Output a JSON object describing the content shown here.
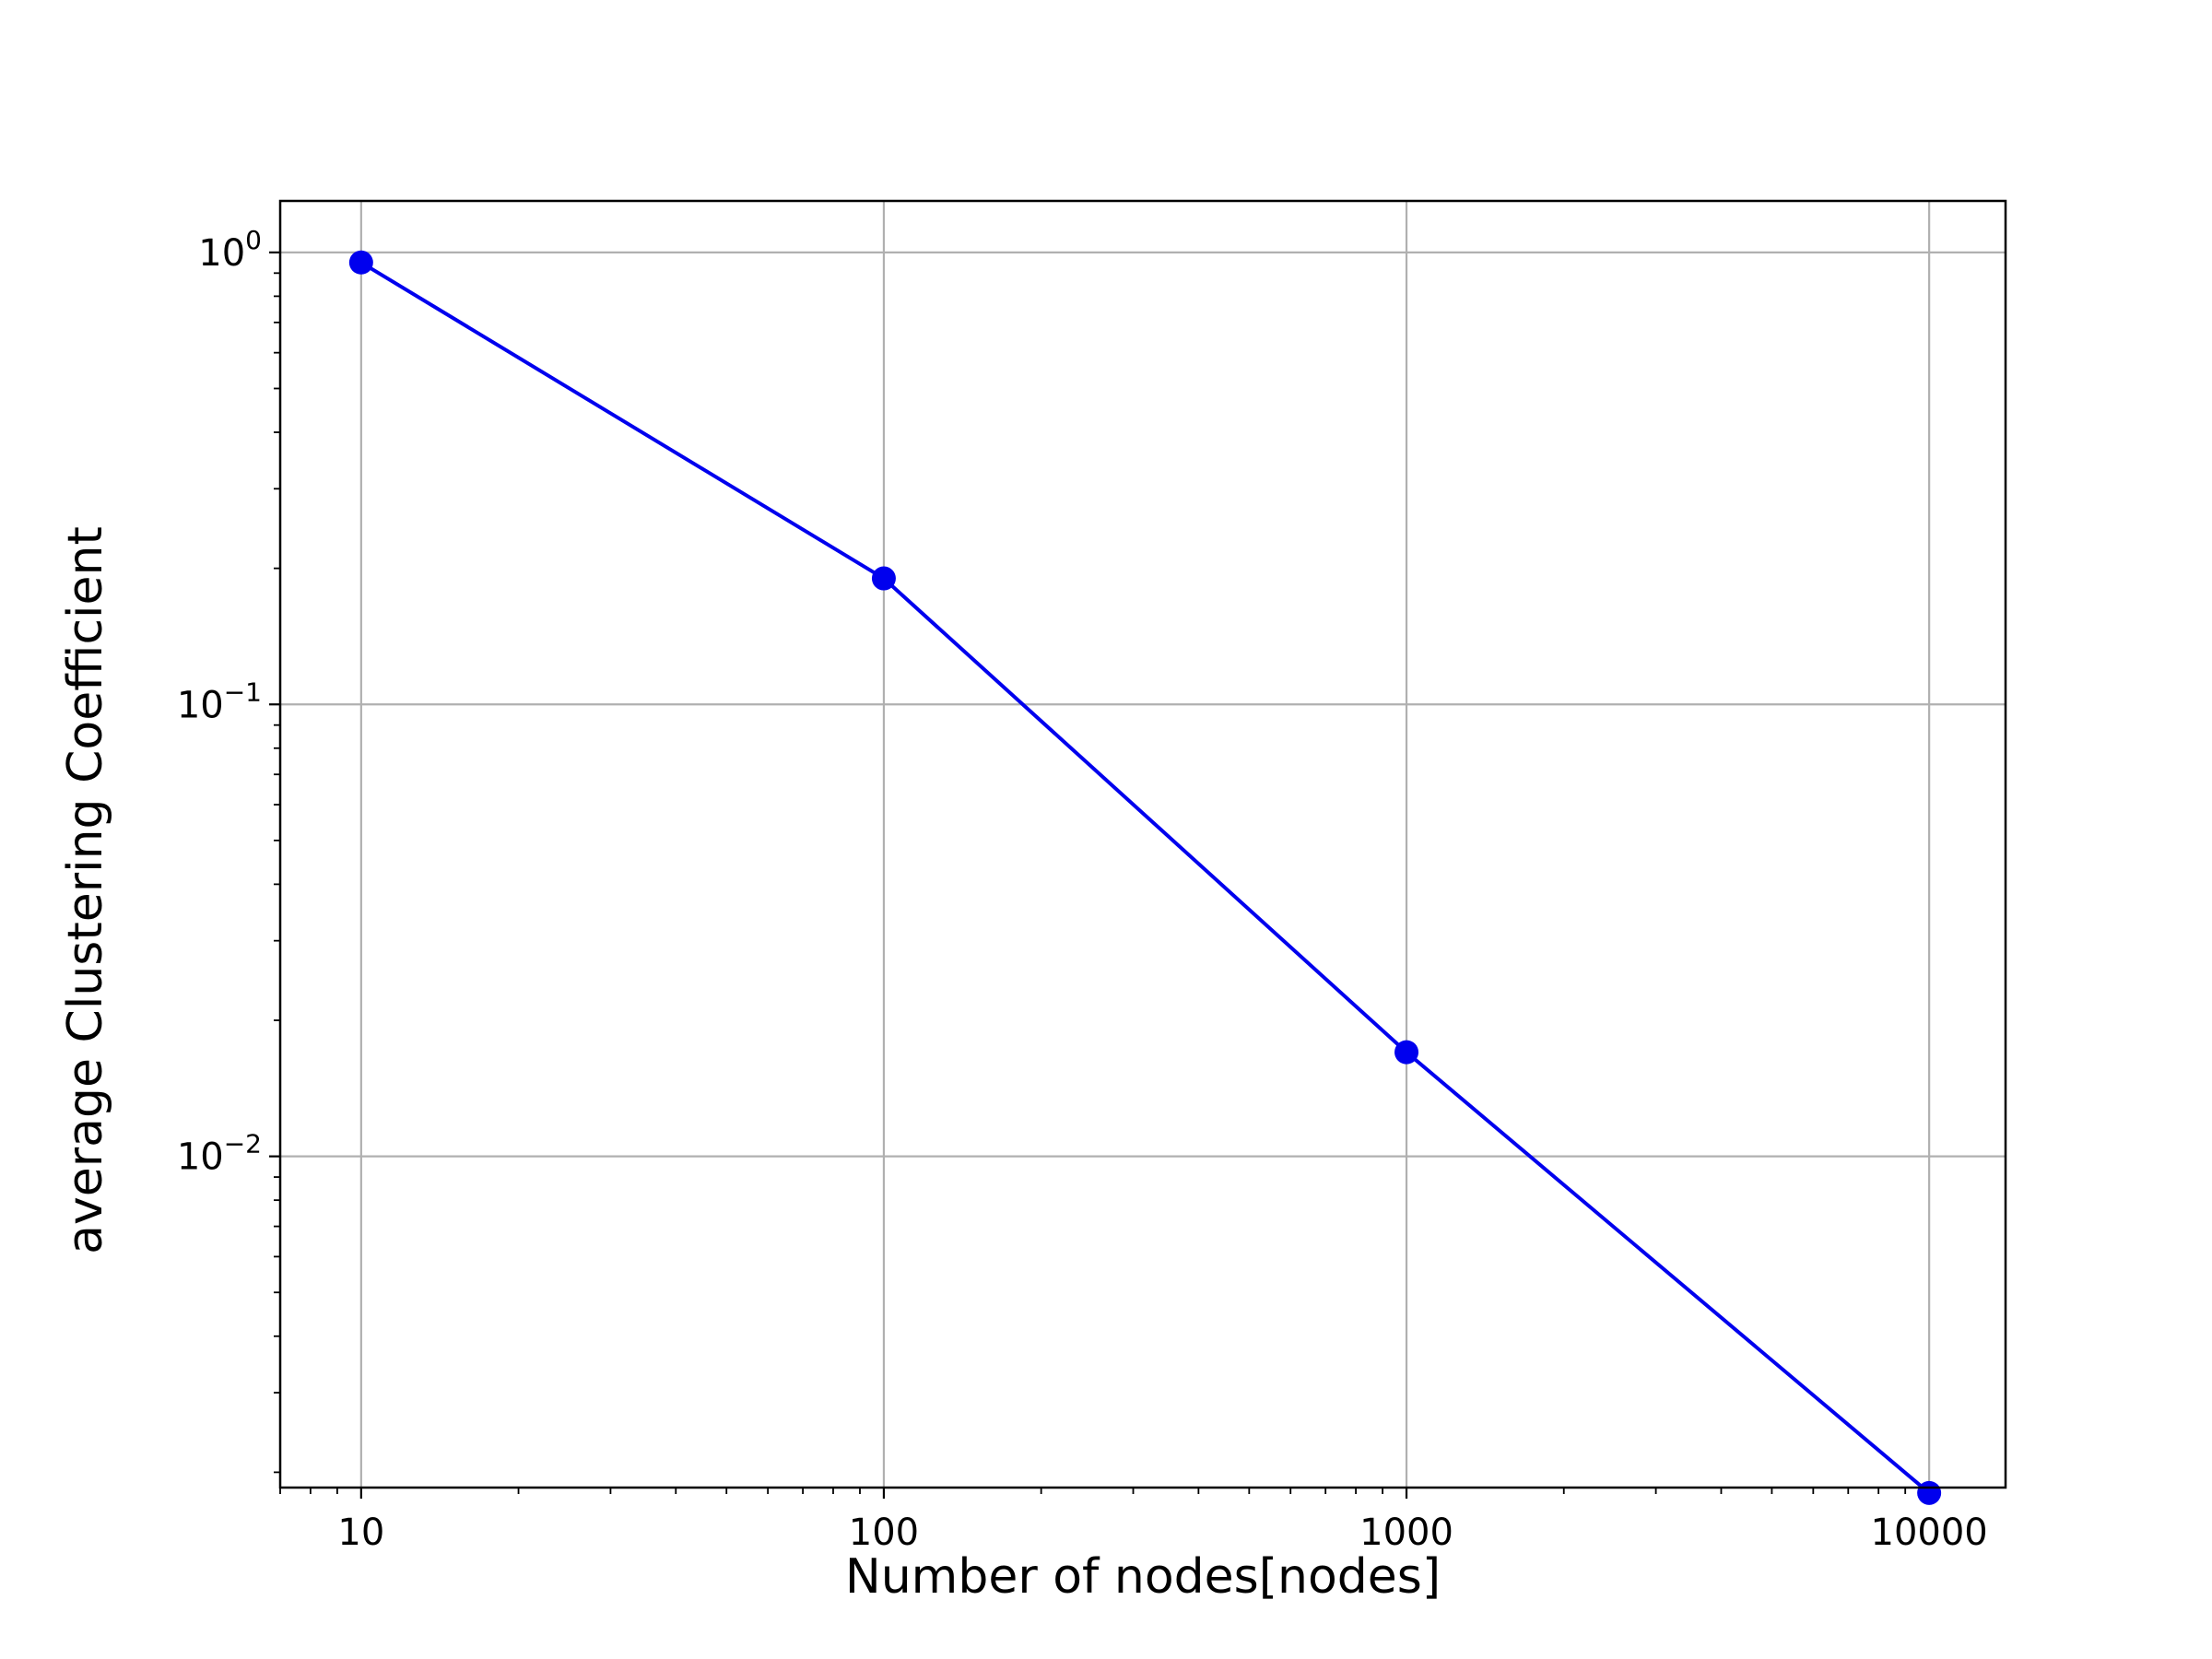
{
  "chart_data": {
    "type": "line",
    "title": "",
    "xlabel": "Number of nodes[nodes]",
    "ylabel": "average Clustering Coefficient",
    "x_scale": "log",
    "y_scale": "log",
    "xlim": [
      7,
      14000
    ],
    "ylim": [
      0.00185,
      1.3
    ],
    "grid": true,
    "x_ticks": [
      {
        "value": 10,
        "label": "10"
      },
      {
        "value": 100,
        "label": "100"
      },
      {
        "value": 1000,
        "label": "1000"
      },
      {
        "value": 10000,
        "label": "10000"
      }
    ],
    "y_ticks": [
      {
        "value": 1,
        "base": "10",
        "exp": "0"
      },
      {
        "value": 0.1,
        "base": "10",
        "exp": "−1"
      },
      {
        "value": 0.01,
        "base": "10",
        "exp": "−2"
      }
    ],
    "series": [
      {
        "color": "#0000ee",
        "marker": "circle",
        "x": [
          10,
          100,
          1000,
          10000
        ],
        "y": [
          0.95,
          0.19,
          0.017,
          0.0018
        ]
      }
    ]
  }
}
